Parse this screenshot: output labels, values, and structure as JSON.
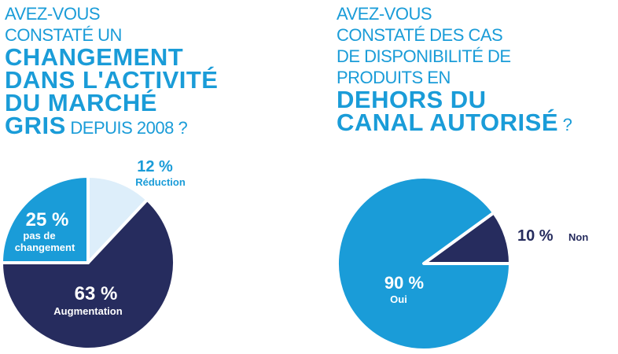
{
  "question1": {
    "intro": [
      "AVEZ-VOUS",
      "CONSTATÉ UN"
    ],
    "emphasis": [
      "CHANGEMENT",
      "DANS L'ACTIVITÉ",
      "DU MARCHÉ"
    ],
    "emphasis_last": "GRIS",
    "tail": " DEPUIS 2008 ?"
  },
  "question2": {
    "intro": [
      "AVEZ-VOUS",
      "CONSTATÉ DES CAS",
      "DE DISPONIBILITÉ DE",
      "PRODUITS EN"
    ],
    "emphasis": [
      "DEHORS DU"
    ],
    "emphasis_last": "CANAL AUTORISÉ",
    "tail": " ?"
  },
  "colors": {
    "dark": "#262c5e",
    "blue": "#1a9cd8",
    "light": "#ddeefa",
    "white": "#ffffff"
  },
  "chart_data": [
    {
      "type": "pie",
      "title": "Changement dans l'activité du marché gris depuis 2008",
      "slices": [
        {
          "name": "Réduction",
          "value": 12,
          "value_label": "12 %",
          "label_lines": [
            "Réduction"
          ]
        },
        {
          "name": "Augmentation",
          "value": 63,
          "value_label": "63 %",
          "label_lines": [
            "Augmentation"
          ]
        },
        {
          "name": "pas de changement",
          "value": 25,
          "value_label": "25 %",
          "label_lines": [
            "pas de",
            "changement"
          ]
        }
      ]
    },
    {
      "type": "pie",
      "title": "Disponibilité de produits en dehors du canal autorisé",
      "slices": [
        {
          "name": "Non",
          "value": 10,
          "value_label": "10 %",
          "label_lines": [
            "Non"
          ]
        },
        {
          "name": "Oui",
          "value": 90,
          "value_label": "90 %",
          "label_lines": [
            "Oui"
          ]
        }
      ]
    }
  ]
}
